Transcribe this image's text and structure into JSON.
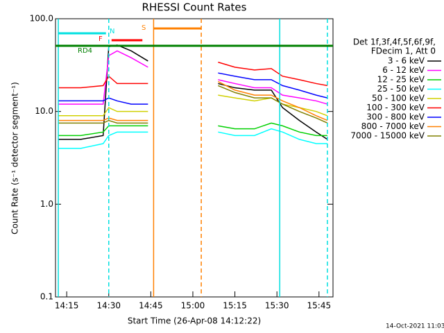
{
  "chart_data": {
    "type": "line",
    "title": "RHESSI Count Rates",
    "x_label": "Start Time (26-Apr-08 14:12:22)",
    "y_label": "Count Rate (s⁻¹ detector segment⁻¹)",
    "log_y": true,
    "xlim": [
      "14:11",
      "15:50"
    ],
    "xticks": [
      "14:15",
      "14:30",
      "14:45",
      "15:00",
      "15:15",
      "15:30",
      "15:45"
    ],
    "ylim": [
      0.1,
      100
    ],
    "yticks": [
      {
        "value": 0.1,
        "label": "0.1"
      },
      {
        "value": 1,
        "label": "1.0"
      },
      {
        "value": 10,
        "label": "10.0"
      },
      {
        "value": 100,
        "label": "100.0"
      }
    ],
    "legend_header": [
      "Det 1f,3f,4f,5f,6f,9f,",
      "FDecim 1, Att 0"
    ],
    "x": [
      "14:12",
      "14:20",
      "14:28",
      "14:30",
      "14:33",
      "14:38",
      "14:44",
      "14:46",
      "15:09",
      "15:15",
      "15:22",
      "15:28",
      "15:32",
      "15:38",
      "15:44",
      "15:48"
    ],
    "series": [
      {
        "name": "3 - 6 keV",
        "color": "#000000",
        "values": [
          5,
          5,
          5.5,
          50,
          52,
          45,
          35,
          null,
          20,
          18,
          17,
          17,
          11,
          8,
          6,
          5
        ]
      },
      {
        "name": "6 - 12 keV",
        "color": "#ff00ff",
        "values": [
          12,
          12,
          12,
          40,
          45,
          38,
          30,
          null,
          22,
          20,
          18,
          18,
          15,
          14,
          13,
          12
        ]
      },
      {
        "name": "12 - 25 keV",
        "color": "#00d000",
        "values": [
          5.5,
          5.5,
          6,
          7,
          7,
          7,
          7,
          null,
          7,
          6.5,
          6.5,
          7.5,
          7,
          6,
          5.5,
          5.5
        ]
      },
      {
        "name": "25 - 50 keV",
        "color": "#00ffff",
        "values": [
          4,
          4,
          4.5,
          5.5,
          6,
          6,
          6,
          null,
          6,
          5.5,
          5.5,
          6.5,
          6,
          5,
          4.5,
          4.5
        ]
      },
      {
        "name": "50 - 100 keV",
        "color": "#d0d000",
        "values": [
          9,
          9,
          9,
          11,
          10,
          10,
          10,
          null,
          15,
          14,
          13,
          14,
          12,
          11,
          10,
          9
        ]
      },
      {
        "name": "100 - 300 keV",
        "color": "#ff0000",
        "values": [
          18,
          18,
          19,
          24,
          20,
          20,
          20,
          null,
          34,
          30,
          28,
          29,
          24,
          22,
          20,
          19
        ]
      },
      {
        "name": "300 - 800 keV",
        "color": "#0000ff",
        "values": [
          13,
          13,
          13,
          14,
          13,
          12,
          12,
          null,
          26,
          24,
          22,
          22,
          19,
          17,
          15,
          14
        ]
      },
      {
        "name": "800 - 7000 keV",
        "color": "#ff8000",
        "values": [
          8,
          8,
          8,
          8.5,
          8,
          8,
          8,
          null,
          21,
          17,
          15,
          15,
          13,
          11,
          9,
          8
        ]
      },
      {
        "name": "7000 - 15000 keV",
        "color": "#808000",
        "values": [
          7.5,
          7.5,
          7.5,
          8,
          7.5,
          7.5,
          7.5,
          null,
          19,
          16,
          14,
          14,
          12,
          10,
          8.5,
          7.5
        ]
      }
    ],
    "markers": [
      {
        "time": "14:12",
        "color": "#00e0e0",
        "style": "solid"
      },
      {
        "time": "14:30",
        "color": "#00e0e0",
        "style": "dashed"
      },
      {
        "time": "15:31",
        "color": "#00e0e0",
        "style": "solid"
      },
      {
        "time": "15:48",
        "color": "#00e0e0",
        "style": "dashed"
      },
      {
        "time": "14:46",
        "color": "#ff8000",
        "style": "solid"
      },
      {
        "time": "15:03",
        "color": "#ff8000",
        "style": "dashed"
      }
    ],
    "flags": [
      {
        "label": "N",
        "color": "#00e0e0",
        "start": "14:12",
        "end": "14:29"
      },
      {
        "label": "F",
        "color": "#ff0000",
        "start": "14:31",
        "end": "14:42"
      },
      {
        "label": "S",
        "color": "#ff8000",
        "start": "14:46",
        "end": "15:03"
      },
      {
        "label": "RD4",
        "color": "#008000",
        "start": "14:11",
        "end": "15:50"
      }
    ],
    "footer": "14-Oct-2021 11:03"
  }
}
